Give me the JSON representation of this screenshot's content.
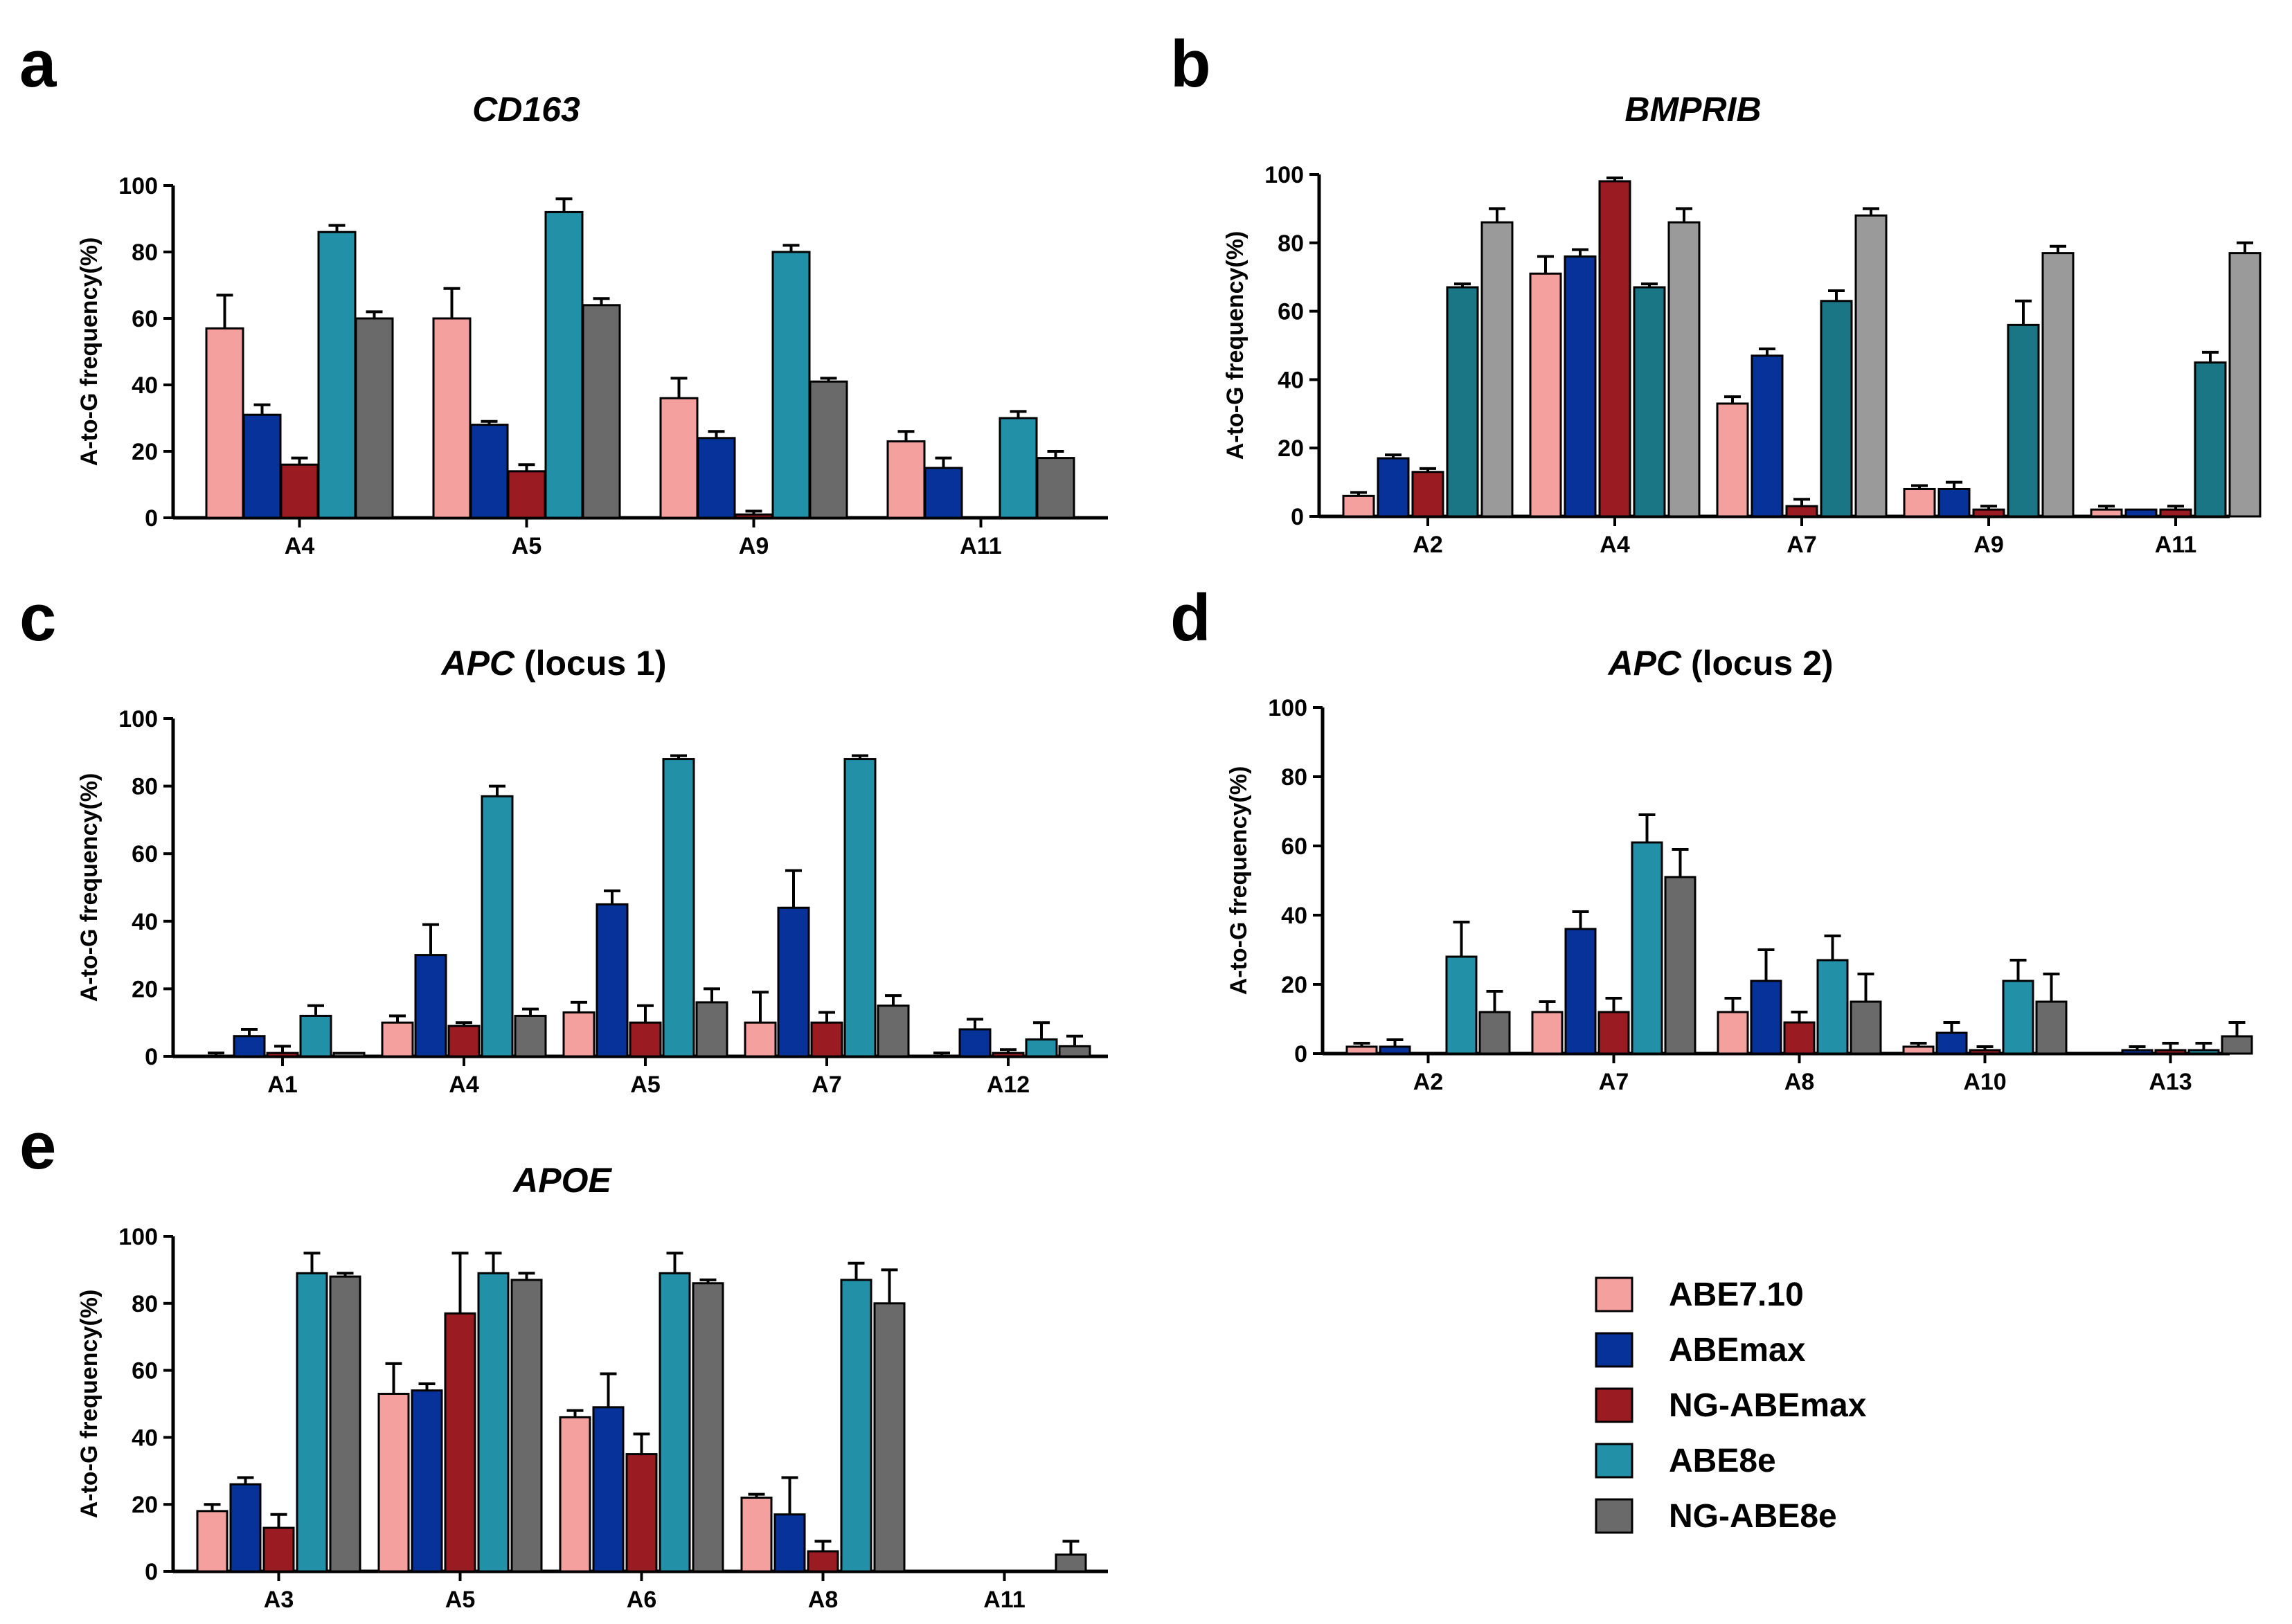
{
  "colors": {
    "ABE7.10": "#f4a09f",
    "ABEmax": "#07329a",
    "NG-ABEmax": "#9b1b22",
    "ABE8e": "#2290a6",
    "NG-ABE8e": "#6a6a6a"
  },
  "colors_b": {
    "ABE8e": "#1a7685",
    "NG-ABE8e": "#9a9a9a"
  },
  "legend": [
    "ABE7.10",
    "ABEmax",
    "NG-ABEmax",
    "ABE8e",
    "NG-ABE8e"
  ],
  "chart_data": [
    {
      "panel": "a",
      "type": "bar",
      "title": "CD163",
      "title_italic": "CD163",
      "title_rest": "",
      "ylabel": "A-to-G frequency(%)",
      "ylim": [
        0,
        100
      ],
      "yticks": [
        0,
        20,
        40,
        60,
        80,
        100
      ],
      "categories": [
        "A4",
        "A5",
        "A9",
        "A11"
      ],
      "series": [
        {
          "name": "ABE7.10",
          "values": [
            57,
            60,
            36,
            23
          ],
          "errors": [
            10,
            9,
            6,
            3
          ]
        },
        {
          "name": "ABEmax",
          "values": [
            31,
            28,
            24,
            15
          ],
          "errors": [
            3,
            1,
            2,
            3
          ]
        },
        {
          "name": "NG-ABEmax",
          "values": [
            16,
            14,
            1,
            0
          ],
          "errors": [
            2,
            2,
            1,
            0
          ]
        },
        {
          "name": "ABE8e",
          "values": [
            86,
            92,
            80,
            30
          ],
          "errors": [
            2,
            4,
            2,
            2
          ]
        },
        {
          "name": "NG-ABE8e",
          "values": [
            60,
            64,
            41,
            18
          ],
          "errors": [
            2,
            2,
            1,
            2
          ]
        }
      ]
    },
    {
      "panel": "b",
      "type": "bar",
      "title": "BMPRIB",
      "title_italic": "BMPRIB",
      "title_rest": "",
      "ylabel": "A-to-G frequency(%)",
      "ylim": [
        0,
        100
      ],
      "yticks": [
        0,
        20,
        40,
        60,
        80,
        100
      ],
      "categories": [
        "A2",
        "A4",
        "A7",
        "A9",
        "A11"
      ],
      "series": [
        {
          "name": "ABE7.10",
          "values": [
            6,
            71,
            33,
            8,
            2
          ],
          "errors": [
            1,
            5,
            2,
            1,
            1
          ]
        },
        {
          "name": "ABEmax",
          "values": [
            17,
            76,
            47,
            8,
            2
          ],
          "errors": [
            1,
            2,
            2,
            2,
            0
          ]
        },
        {
          "name": "NG-ABEmax",
          "values": [
            13,
            98,
            3,
            2,
            2
          ],
          "errors": [
            1,
            1,
            2,
            1,
            1
          ]
        },
        {
          "name": "ABE8e",
          "values": [
            67,
            67,
            63,
            56,
            45
          ],
          "errors": [
            1,
            1,
            3,
            7,
            3
          ]
        },
        {
          "name": "NG-ABE8e",
          "values": [
            86,
            86,
            88,
            77,
            77
          ],
          "errors": [
            4,
            4,
            2,
            2,
            3
          ]
        }
      ]
    },
    {
      "panel": "c",
      "type": "bar",
      "title": "APC (locus 1)",
      "title_italic": "APC",
      "title_rest": " (locus 1)",
      "ylabel": "A-to-G frequency(%)",
      "ylim": [
        0,
        100
      ],
      "yticks": [
        0,
        20,
        40,
        60,
        80,
        100
      ],
      "categories": [
        "A1",
        "A4",
        "A5",
        "A7",
        "A12"
      ],
      "series": [
        {
          "name": "ABE7.10",
          "values": [
            0,
            10,
            13,
            10,
            0
          ],
          "errors": [
            1,
            2,
            3,
            9,
            1
          ]
        },
        {
          "name": "ABEmax",
          "values": [
            6,
            30,
            45,
            44,
            8
          ],
          "errors": [
            2,
            9,
            4,
            11,
            3
          ]
        },
        {
          "name": "NG-ABEmax",
          "values": [
            1,
            9,
            10,
            10,
            1
          ],
          "errors": [
            2,
            1,
            5,
            3,
            1
          ]
        },
        {
          "name": "ABE8e",
          "values": [
            12,
            77,
            88,
            88,
            5
          ],
          "errors": [
            3,
            3,
            1,
            1,
            5
          ]
        },
        {
          "name": "NG-ABE8e",
          "values": [
            1,
            12,
            16,
            15,
            3
          ],
          "errors": [
            0,
            2,
            4,
            3,
            3
          ]
        }
      ]
    },
    {
      "panel": "d",
      "type": "bar",
      "title": "APC (locus 2)",
      "title_italic": "APC",
      "title_rest": " (locus 2)",
      "ylabel": "A-to-G frequency(%)",
      "ylim": [
        0,
        100
      ],
      "yticks": [
        0,
        20,
        40,
        60,
        80,
        100
      ],
      "categories": [
        "A2",
        "A7",
        "A8",
        "A10",
        "A13"
      ],
      "series": [
        {
          "name": "ABE7.10",
          "values": [
            2,
            12,
            12,
            2,
            0
          ],
          "errors": [
            1,
            3,
            4,
            1,
            0
          ]
        },
        {
          "name": "ABEmax",
          "values": [
            2,
            36,
            21,
            6,
            1
          ],
          "errors": [
            2,
            5,
            9,
            3,
            1
          ]
        },
        {
          "name": "NG-ABEmax",
          "values": [
            0,
            12,
            9,
            1,
            1
          ],
          "errors": [
            0,
            4,
            3,
            1,
            2
          ]
        },
        {
          "name": "ABE8e",
          "values": [
            28,
            61,
            27,
            21,
            1
          ],
          "errors": [
            10,
            8,
            7,
            6,
            2
          ]
        },
        {
          "name": "NG-ABE8e",
          "values": [
            12,
            51,
            15,
            15,
            5
          ],
          "errors": [
            6,
            8,
            8,
            8,
            4
          ]
        }
      ]
    },
    {
      "panel": "e",
      "type": "bar",
      "title": "APOE",
      "title_italic": "APOE",
      "title_rest": "",
      "ylabel": "A-to-G frequency(%)",
      "ylim": [
        0,
        100
      ],
      "yticks": [
        0,
        20,
        40,
        60,
        80,
        100
      ],
      "categories": [
        "A3",
        "A5",
        "A6",
        "A8",
        "A11"
      ],
      "series": [
        {
          "name": "ABE7.10",
          "values": [
            18,
            53,
            46,
            22,
            0
          ],
          "errors": [
            2,
            9,
            2,
            1,
            0
          ]
        },
        {
          "name": "ABEmax",
          "values": [
            26,
            54,
            49,
            17,
            0
          ],
          "errors": [
            2,
            2,
            10,
            11,
            0
          ]
        },
        {
          "name": "NG-ABEmax",
          "values": [
            13,
            77,
            35,
            6,
            0
          ],
          "errors": [
            4,
            18,
            6,
            3,
            0
          ]
        },
        {
          "name": "ABE8e",
          "values": [
            89,
            89,
            89,
            87,
            0
          ],
          "errors": [
            6,
            6,
            6,
            5,
            0
          ]
        },
        {
          "name": "NG-ABE8e",
          "values": [
            88,
            87,
            86,
            80,
            5
          ],
          "errors": [
            1,
            2,
            1,
            10,
            4
          ]
        }
      ]
    }
  ]
}
